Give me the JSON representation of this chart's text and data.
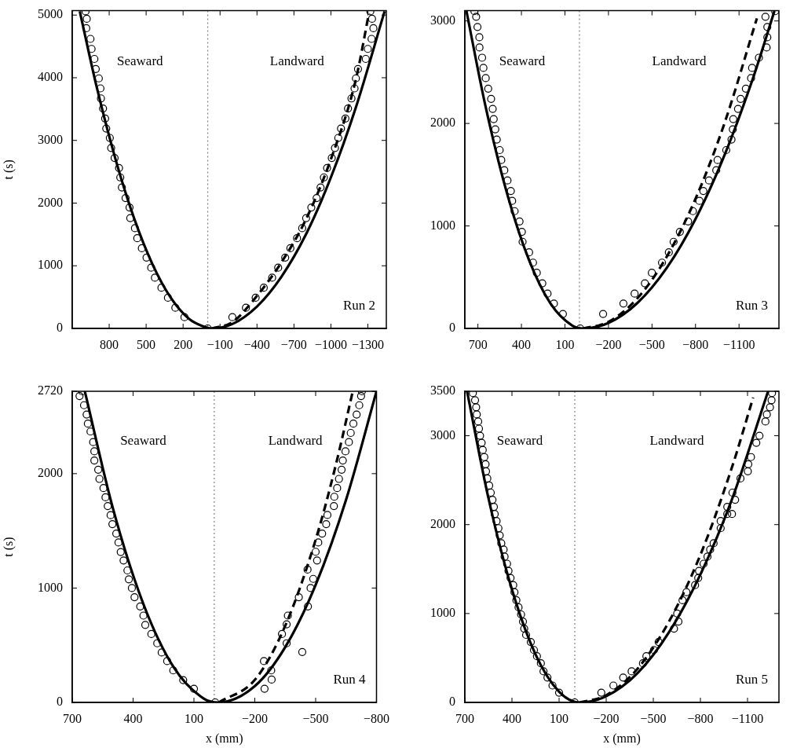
{
  "chart_data": [
    {
      "type": "scatter",
      "ylabel": "t (s)",
      "xlim": [
        1100,
        -1450
      ],
      "xticks": [
        800,
        500,
        200,
        -100,
        -400,
        -700,
        -1000,
        -1300
      ],
      "ylim": [
        0,
        5070
      ],
      "yticks": [
        0,
        1000,
        2000,
        3000,
        4000,
        5000
      ],
      "ref_lines": [
        {
          "axis": "x",
          "value": 0,
          "color": "#808080",
          "line_style": "dotted"
        }
      ],
      "annotations": [
        "Seaward",
        "Landward",
        "Run 2"
      ],
      "series": [
        {
          "type": "scatter",
          "color": "#000000",
          "marker": "circle",
          "x": [
            992,
            982,
            986,
            952,
            943,
            920,
            909,
            884,
            871,
            867,
            850,
            833,
            824,
            795,
            784,
            756,
            720,
            710,
            697,
            667,
            635,
            629,
            591,
            572,
            535,
            497,
            459,
            429,
            376,
            323,
            263,
            189,
            0,
            -200,
            -310,
            -389,
            -455,
            -523,
            -572,
            -629,
            -671,
            -725,
            -767,
            -799,
            -841,
            -884,
            -916,
            -943,
            -969,
            -1007,
            -1033,
            -1060,
            -1082,
            -1118,
            -1139,
            -1167,
            -1192,
            -1203,
            -1220,
            -1283,
            -1300,
            -1330,
            -1345,
            -1334,
            -1320
          ],
          "values": [
            5060,
            4940,
            4790,
            4620,
            4460,
            4300,
            4140,
            3990,
            3830,
            3670,
            3510,
            3350,
            3190,
            3040,
            2880,
            2720,
            2560,
            2410,
            2250,
            2080,
            1930,
            1760,
            1600,
            1440,
            1280,
            1130,
            970,
            810,
            650,
            490,
            330,
            180,
            0,
            180,
            330,
            490,
            650,
            810,
            970,
            1130,
            1280,
            1440,
            1600,
            1760,
            1930,
            2080,
            2250,
            2410,
            2560,
            2720,
            2880,
            3040,
            3190,
            3350,
            3510,
            3670,
            3830,
            3990,
            4140,
            4300,
            4460,
            4620,
            4790,
            4940,
            5060
          ]
        },
        {
          "type": "line",
          "color": "#000000",
          "marker": "none",
          "line_style": "solid",
          "x": [
            1039,
            900,
            750,
            600,
            450,
            300,
            150,
            0,
            -34,
            -200,
            -400,
            -600,
            -800,
            -1000,
            -1200,
            -1436
          ],
          "values": [
            5060,
            3840,
            2710,
            1770,
            1030,
            490,
            150,
            10,
            0,
            70,
            350,
            830,
            1510,
            2410,
            3510,
            5060
          ]
        },
        {
          "type": "line",
          "color": "#000000",
          "marker": "none",
          "line_style": "dashed",
          "x": [
            -34,
            -200,
            -400,
            -600,
            -800,
            -1000,
            -1200,
            -1309
          ],
          "values": [
            0,
            100,
            520,
            1060,
            1750,
            2700,
            3950,
            5030
          ]
        }
      ]
    },
    {
      "type": "scatter",
      "xlim": [
        790,
        -1375
      ],
      "xticks": [
        700,
        400,
        100,
        -200,
        -500,
        -800,
        -1100
      ],
      "ylim": [
        0,
        3100
      ],
      "yticks": [
        0,
        1000,
        2000,
        3000
      ],
      "ref_lines": [
        {
          "axis": "x",
          "value": 0,
          "color": "#808080",
          "line_style": "dotted"
        }
      ],
      "annotations": [
        "Seaward",
        "Landward",
        "Run 3"
      ],
      "series": [
        {
          "type": "scatter",
          "color": "#000000",
          "marker": "circle",
          "x": [
            724,
            712,
            703,
            690,
            689,
            671,
            662,
            646,
            629,
            609,
            598,
            591,
            580,
            570,
            550,
            539,
            518,
            496,
            473,
            464,
            447,
            413,
            397,
            392,
            347,
            320,
            294,
            256,
            220,
            176,
            114,
            -5,
            -163,
            -303,
            -380,
            -451,
            -499,
            -569,
            -616,
            -649,
            -692,
            -749,
            -782,
            -827,
            -854,
            -893,
            -943,
            -952,
            -1012,
            -1048,
            -1057,
            -1060,
            -1093,
            -1111,
            -1147,
            -1183,
            -1190,
            -1237,
            -1290,
            -1295,
            -1295,
            -1282,
            -1349
          ],
          "values": [
            3095,
            3041,
            2941,
            2841,
            2741,
            2641,
            2542,
            2442,
            2339,
            2240,
            2142,
            2042,
            1943,
            1843,
            1740,
            1643,
            1543,
            1444,
            1341,
            1244,
            1144,
            1044,
            942,
            845,
            742,
            642,
            543,
            440,
            340,
            243,
            141,
            0,
            141,
            243,
            340,
            440,
            543,
            642,
            742,
            845,
            942,
            1044,
            1144,
            1244,
            1341,
            1444,
            1543,
            1643,
            1740,
            1843,
            1943,
            2042,
            2142,
            2240,
            2339,
            2442,
            2542,
            2641,
            2741,
            2841,
            2941,
            3041,
            3095
          ]
        },
        {
          "type": "line",
          "color": "#000000",
          "marker": "none",
          "line_style": "solid",
          "x": [
            779,
            650,
            500,
            350,
            200,
            50,
            -26,
            -200,
            -400,
            -600,
            -800,
            -1000,
            -1200,
            -1344
          ],
          "values": [
            3097,
            2184,
            1322,
            676,
            244,
            28,
            0,
            54,
            249,
            587,
            1068,
            1691,
            2457,
            3097
          ]
        },
        {
          "type": "line",
          "color": "#000000",
          "marker": "none",
          "line_style": "dashed",
          "x": [
            -26,
            -200,
            -400,
            -600,
            -800,
            -1000,
            -1223
          ],
          "values": [
            0,
            64,
            295,
            696,
            1265,
            2003,
            3025
          ]
        }
      ]
    },
    {
      "type": "scatter",
      "ylabel": "t (s)",
      "xlabel": "x (mm)",
      "xlim": [
        700,
        -800
      ],
      "xticks": [
        700,
        400,
        100,
        -200,
        -500,
        -800
      ],
      "ylim": [
        0,
        2720
      ],
      "yticks": [
        0,
        1000,
        2000,
        2720
      ],
      "ref_lines": [
        {
          "axis": "x",
          "value": 0,
          "color": "#808080",
          "line_style": "dotted"
        }
      ],
      "annotations": [
        "Seaward",
        "Landward",
        "Run 4"
      ],
      "series": [
        {
          "type": "scatter",
          "color": "#000000",
          "marker": "circle",
          "x": [
            651,
            664,
            642,
            629,
            623,
            610,
            597,
            591,
            591,
            572,
            566,
            546,
            536,
            525,
            511,
            502,
            483,
            472,
            461,
            447,
            428,
            421,
            406,
            393,
            365,
            349,
            340,
            310,
            281,
            259,
            232,
            202,
            153,
            100,
            -5,
            -245,
            -281,
            -283,
            -248,
            -434,
            -357,
            -334,
            -357,
            -363,
            -417,
            -462,
            -475,
            -488,
            -460,
            -507,
            -500,
            -513,
            -532,
            -552,
            -558,
            -590,
            -592,
            -606,
            -615,
            -628,
            -634,
            -647,
            -664,
            -673,
            -686,
            -702,
            -715,
            -724,
            -728
          ],
          "values": [
            2720,
            2678,
            2598,
            2517,
            2437,
            2368,
            2276,
            2195,
            2115,
            2034,
            1954,
            1874,
            1793,
            1717,
            1637,
            1559,
            1476,
            1398,
            1315,
            1241,
            1154,
            1076,
            1000,
            920,
            839,
            759,
            678,
            598,
            517,
            437,
            361,
            280,
            195,
            120,
            0,
            361,
            280,
            200,
            120,
            441,
            517,
            598,
            683,
            759,
            920,
            839,
            1000,
            1080,
            1161,
            1241,
            1317,
            1398,
            1476,
            1559,
            1639,
            1717,
            1798,
            1874,
            1954,
            2034,
            2115,
            2195,
            2276,
            2356,
            2437,
            2517,
            2598,
            2678,
            2720
          ]
        },
        {
          "type": "line",
          "color": "#000000",
          "marker": "none",
          "line_style": "solid",
          "x": [
            638,
            500,
            350,
            200,
            50,
            -22,
            -200,
            -350,
            -500,
            -650,
            -800
          ],
          "values": [
            2720,
            1701,
            864,
            308,
            32,
            0,
            142,
            483,
            1027,
            1772,
            2720
          ]
        },
        {
          "type": "line",
          "color": "#000000",
          "marker": "none",
          "line_style": "dashed",
          "x": [
            -22,
            -200,
            -350,
            -500,
            -600,
            -683
          ],
          "values": [
            0,
            197,
            670,
            1422,
            2080,
            2720
          ]
        }
      ]
    },
    {
      "type": "scatter",
      "xlabel": "x (mm)",
      "xlim": [
        700,
        -1300
      ],
      "xticks": [
        700,
        400,
        100,
        -200,
        -500,
        -800,
        -1100
      ],
      "ylim": [
        0,
        3500
      ],
      "yticks": [
        0,
        1000,
        2000,
        3000,
        3500
      ],
      "ref_lines": [
        {
          "axis": "x",
          "value": 0,
          "color": "#808080",
          "line_style": "dotted"
        }
      ],
      "annotations": [
        "Seaward",
        "Landward",
        "Run 5"
      ],
      "series": [
        {
          "type": "scatter",
          "color": "#000000",
          "marker": "circle",
          "x": [
            649,
            635,
            628,
            624,
            615,
            610,
            603,
            593,
            586,
            576,
            568,
            565,
            557,
            545,
            535,
            524,
            515,
            510,
            498,
            486,
            478,
            468,
            453,
            447,
            431,
            422,
            409,
            392,
            384,
            372,
            358,
            342,
            330,
            322,
            310,
            280,
            260,
            241,
            216,
            199,
            174,
            142,
            100,
            0,
            -169,
            -246,
            -308,
            -362,
            -434,
            -456,
            -504,
            -534,
            -632,
            -660,
            -652,
            -686,
            -711,
            -766,
            -786,
            -791,
            -820,
            -845,
            -862,
            -884,
            -929,
            -929,
            -971,
            -1001,
            -971,
            -1021,
            -1004,
            -1055,
            -1102,
            -1105,
            -1122,
            -1156,
            -1176,
            -1214,
            -1223,
            -1243,
            -1253,
            -1256
          ],
          "values": [
            3480,
            3400,
            3320,
            3240,
            3160,
            3080,
            3000,
            2920,
            2840,
            2760,
            2680,
            2600,
            2520,
            2440,
            2360,
            2280,
            2200,
            2120,
            2040,
            1960,
            1880,
            1790,
            1720,
            1640,
            1560,
            1480,
            1400,
            1320,
            1240,
            1150,
            1070,
            990,
            910,
            830,
            760,
            680,
            590,
            520,
            440,
            350,
            280,
            190,
            110,
            0,
            110,
            190,
            280,
            350,
            440,
            520,
            590,
            680,
            830,
            910,
            1000,
            1150,
            1240,
            1320,
            1400,
            1480,
            1560,
            1640,
            1720,
            1790,
            1960,
            2040,
            2120,
            2120,
            2200,
            2280,
            2360,
            2520,
            2600,
            2680,
            2760,
            2920,
            3000,
            3160,
            3240,
            3320,
            3400,
            3480
          ]
        },
        {
          "type": "line",
          "color": "#000000",
          "marker": "none",
          "line_style": "solid",
          "x": [
            686,
            550,
            400,
            250,
            100,
            -31,
            -200,
            -400,
            -600,
            -800,
            -1000,
            -1231
          ],
          "values": [
            3500,
            2300,
            1270,
            540,
            120,
            0,
            70,
            330,
            790,
            1440,
            2280,
            3500
          ]
        },
        {
          "type": "line",
          "color": "#000000",
          "marker": "none",
          "line_style": "dashed",
          "x": [
            -31,
            -200,
            -400,
            -600,
            -800,
            -1000,
            -1136
          ],
          "values": [
            0,
            80,
            380,
            910,
            1660,
            2640,
            3430
          ]
        }
      ]
    }
  ]
}
